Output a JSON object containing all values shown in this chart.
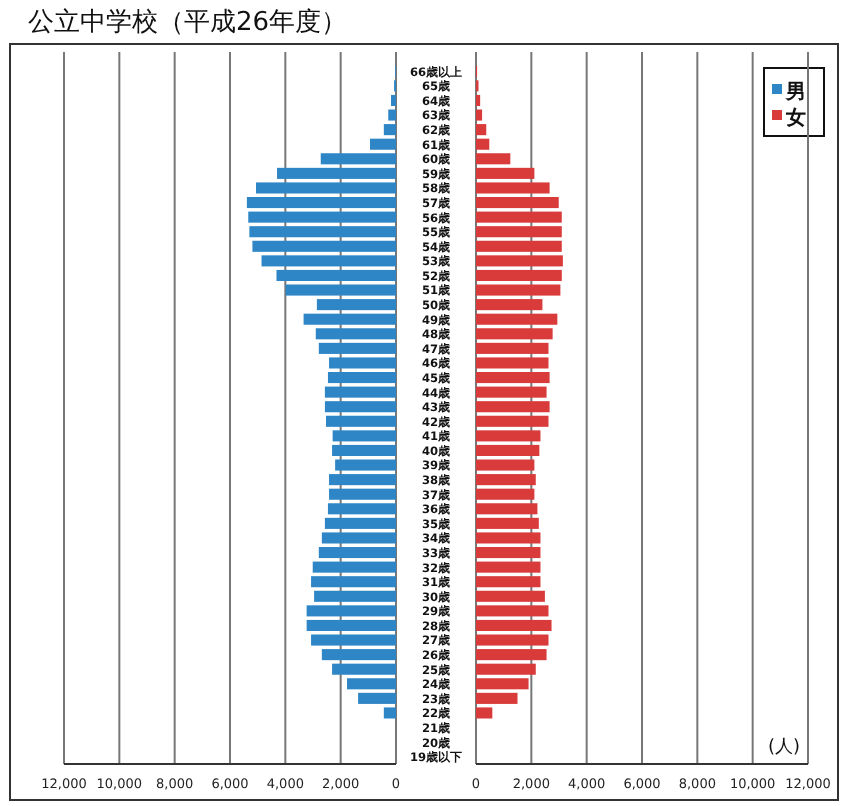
{
  "chart_data": [
    {
      "type": "bar",
      "orientation": "horizontal",
      "title": "公立中学校（平成26年度）",
      "categories": [
        "66歳以上",
        "65歳",
        "64歳",
        "63歳",
        "62歳",
        "61歳",
        "60歳",
        "59歳",
        "58歳",
        "57歳",
        "56歳",
        "55歳",
        "54歳",
        "53歳",
        "52歳",
        "51歳",
        "50歳",
        "49歳",
        "48歳",
        "47歳",
        "46歳",
        "45歳",
        "44歳",
        "43歳",
        "42歳",
        "41歳",
        "40歳",
        "39歳",
        "38歳",
        "37歳",
        "36歳",
        "35歳",
        "34歳",
        "33歳",
        "32歳",
        "31歳",
        "30歳",
        "29歳",
        "28歳",
        "27歳",
        "26歳",
        "25歳",
        "24歳",
        "23歳",
        "22歳",
        "21歳",
        "20歳",
        "19歳以下"
      ],
      "legend": "top right",
      "series": [
        {
          "name": "男",
          "color": "#2f86c6",
          "values": [
            30,
            70,
            180,
            280,
            440,
            940,
            2720,
            4300,
            5060,
            5390,
            5340,
            5300,
            5190,
            4860,
            4320,
            3990,
            2860,
            3340,
            2900,
            2790,
            2420,
            2460,
            2570,
            2570,
            2530,
            2290,
            2310,
            2200,
            2420,
            2420,
            2460,
            2570,
            2680,
            2790,
            3010,
            3070,
            2960,
            3230,
            3230,
            3070,
            2680,
            2310,
            1770,
            1370,
            440,
            0,
            0,
            0
          ]
        }
      ],
      "xlim": [
        12000,
        0
      ],
      "xticks": [
        {
          "value": 12000,
          "label": "12,000"
        },
        {
          "value": 10000,
          "label": "10,000"
        },
        {
          "value": 8000,
          "label": "8,000"
        },
        {
          "value": 6000,
          "label": "6,000"
        },
        {
          "value": 4000,
          "label": "4,000"
        },
        {
          "value": 2000,
          "label": "2,000"
        },
        0
      ],
      "grid": "x"
    },
    {
      "type": "bar",
      "orientation": "horizontal",
      "categories": [
        null,
        null,
        null,
        null,
        null,
        null,
        null,
        null,
        null,
        null,
        null,
        null,
        null,
        null,
        null,
        null,
        null,
        null,
        null,
        null,
        null,
        null,
        null,
        null,
        null,
        null,
        null,
        null,
        null,
        null,
        null,
        null,
        null,
        null,
        null,
        null,
        null,
        null,
        null,
        null,
        null,
        null,
        null,
        null,
        null,
        null,
        null,
        null
      ],
      "series": [
        {
          "name": "女",
          "color": "#d93a3a",
          "values": [
            40,
            90,
            150,
            220,
            370,
            480,
            1240,
            2110,
            2660,
            2990,
            3100,
            3100,
            3100,
            3140,
            3100,
            3050,
            2400,
            2940,
            2770,
            2620,
            2620,
            2660,
            2550,
            2660,
            2620,
            2330,
            2290,
            2110,
            2160,
            2110,
            2220,
            2270,
            2330,
            2330,
            2330,
            2330,
            2490,
            2620,
            2730,
            2620,
            2550,
            2160,
            1900,
            1500,
            590,
            0,
            0,
            0
          ]
        }
      ],
      "xlim": [
        0,
        12000
      ],
      "xticks": [
        0,
        {
          "value": 2000,
          "label": "2,000"
        },
        {
          "value": 4000,
          "label": "4,000"
        },
        {
          "value": 6000,
          "label": "6,000"
        },
        {
          "value": 8000,
          "label": "8,000"
        },
        {
          "value": 10000,
          "label": "10,000"
        },
        {
          "value": 12000,
          "label": "12,000"
        }
      ],
      "grid": "x",
      "tick_labels": "x",
      "legend": "top right",
      "annotations": [
        "(人)"
      ]
    }
  ]
}
